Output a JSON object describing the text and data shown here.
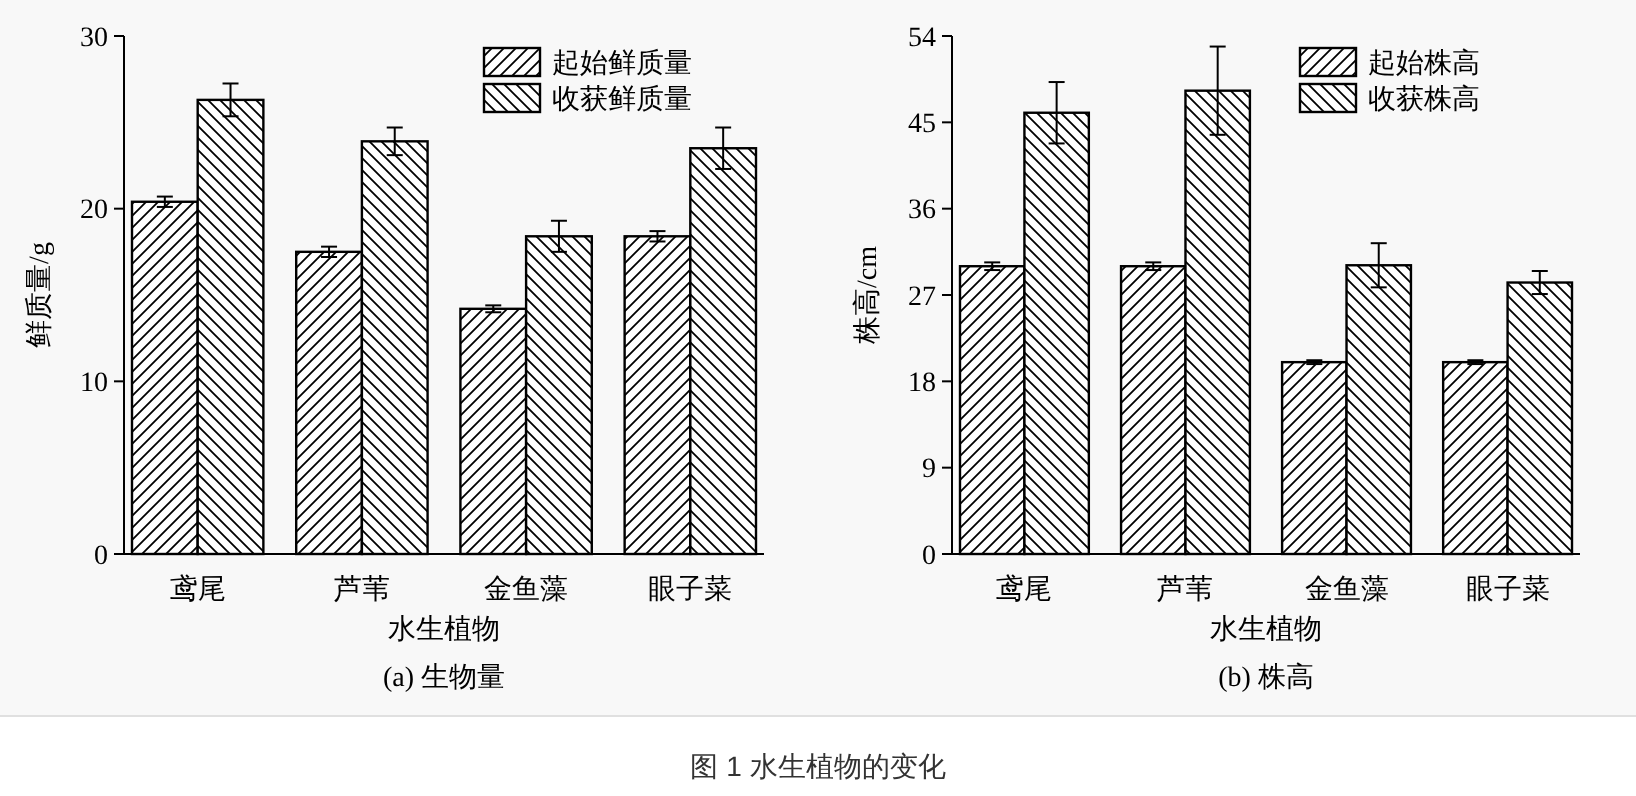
{
  "chart_data": [
    {
      "type": "bar",
      "xlabel": "水生植物",
      "ylabel": "鲜质量/g",
      "categories": [
        "鸢尾",
        "芦苇",
        "金鱼藻",
        "眼子菜"
      ],
      "ylim": [
        0,
        30
      ],
      "yticks": [
        0,
        10,
        20,
        30
      ],
      "legend": "top right",
      "grid": false,
      "series": [
        {
          "name": "起始鲜质量",
          "color": "#000000",
          "values": [
            20.4,
            17.5,
            14.2,
            18.4
          ],
          "errors": [
            0.3,
            0.3,
            0.2,
            0.3
          ]
        },
        {
          "name": "收获鲜质量",
          "color": "#000000",
          "values": [
            26.3,
            23.9,
            18.4,
            23.5
          ],
          "errors": [
            0.95,
            0.8,
            0.9,
            1.2
          ]
        }
      ],
      "annotations": [
        "(a) 生物量"
      ]
    },
    {
      "type": "bar",
      "xlabel": "水生植物",
      "ylabel": "株高/cm",
      "categories": [
        "鸢尾",
        "芦苇",
        "金鱼藻",
        "眼子菜"
      ],
      "ylim": [
        0,
        54
      ],
      "yticks": [
        0,
        9,
        18,
        27,
        36,
        45,
        54
      ],
      "legend": "top right",
      "grid": false,
      "series": [
        {
          "name": "起始株高",
          "color": "#000000",
          "values": [
            30.0,
            30.0,
            20.0,
            20.0
          ],
          "errors": [
            0.4,
            0.4,
            0.2,
            0.2
          ]
        },
        {
          "name": "收获株高",
          "color": "#000000",
          "values": [
            46.0,
            48.3,
            30.1,
            28.3
          ],
          "errors": [
            3.2,
            4.6,
            2.3,
            1.2
          ]
        }
      ],
      "annotations": [
        "(b) 株高",
        "图 1  水生植物的变化"
      ]
    }
  ]
}
